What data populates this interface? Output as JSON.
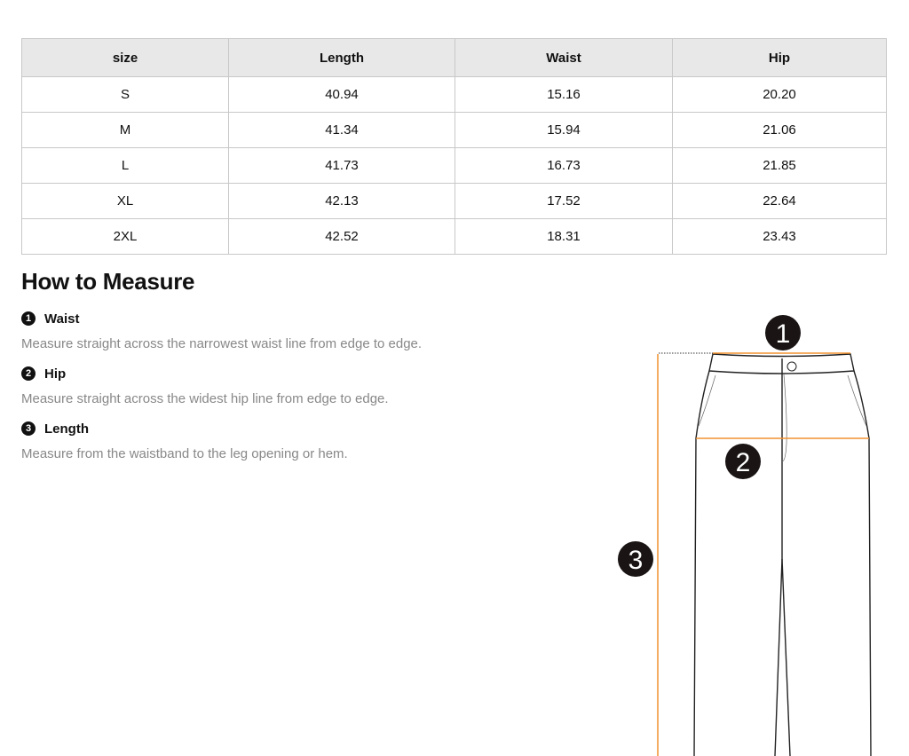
{
  "table": {
    "headers": [
      "size",
      "Length",
      "Waist",
      "Hip"
    ],
    "rows": [
      [
        "S",
        "40.94",
        "15.16",
        "20.20"
      ],
      [
        "M",
        "41.34",
        "15.94",
        "21.06"
      ],
      [
        "L",
        "41.73",
        "16.73",
        "21.85"
      ],
      [
        "XL",
        "42.13",
        "17.52",
        "22.64"
      ],
      [
        "2XL",
        "42.52",
        "18.31",
        "23.43"
      ]
    ]
  },
  "guide": {
    "title": "How to Measure",
    "items": [
      {
        "num": "1",
        "label": "Waist",
        "desc": "Measure straight across the narrowest waist line from edge to edge."
      },
      {
        "num": "2",
        "label": "Hip",
        "desc": "Measure straight across the widest hip line from edge to edge."
      },
      {
        "num": "3",
        "label": "Length",
        "desc": "Measure from the waistband to the leg opening or hem."
      }
    ]
  },
  "diagram": {
    "markers": [
      "1",
      "2",
      "3"
    ],
    "accent": "#f0922e"
  }
}
